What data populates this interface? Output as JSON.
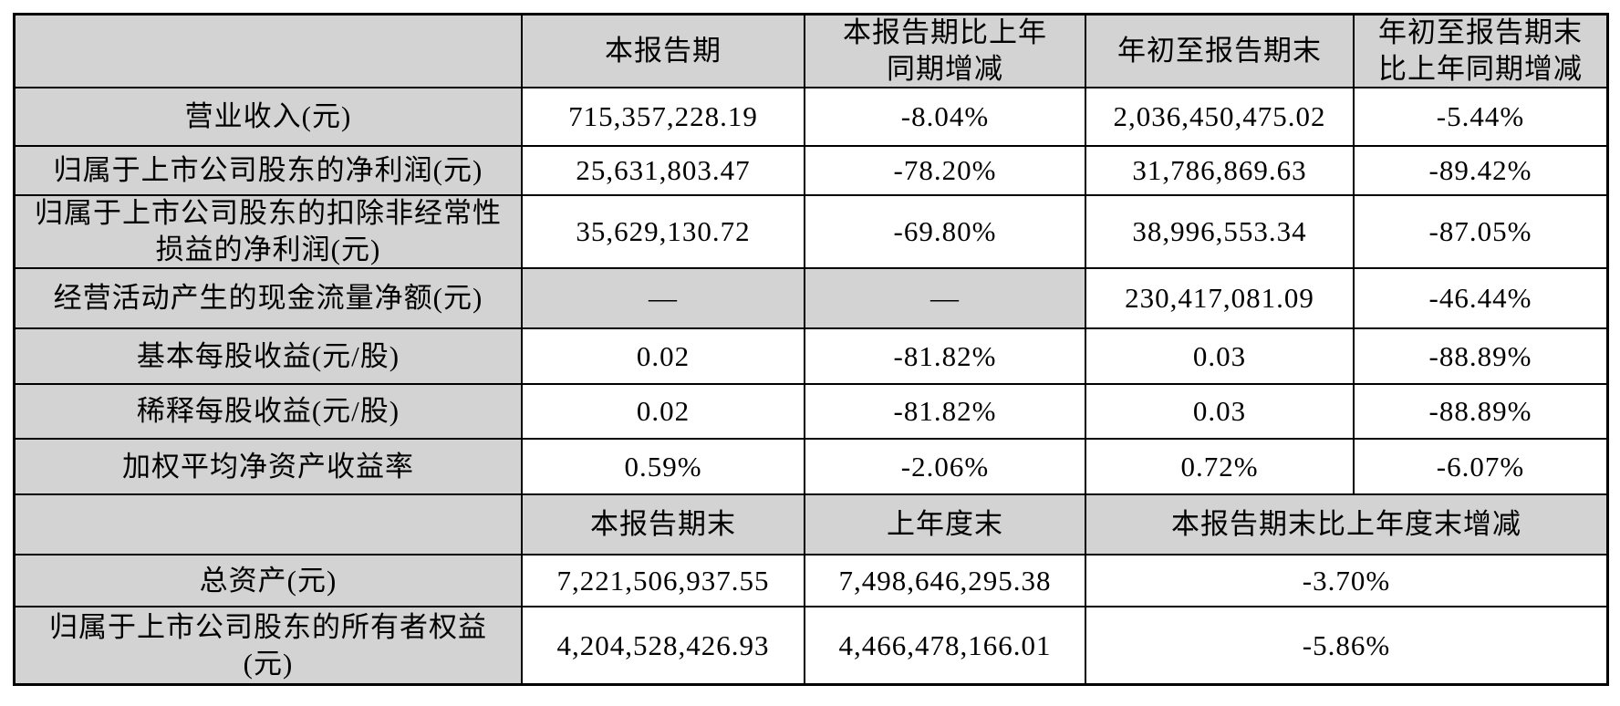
{
  "colors": {
    "shaded_cell": "#d3d3d3",
    "value_cell": "#ffffff",
    "border": "#000000",
    "text": "#000000"
  },
  "table": {
    "header_period": {
      "corner": "",
      "current_period": "本报告期",
      "current_period_yoy": "本报告期比上年\n同期增减",
      "ytd": "年初至报告期末",
      "ytd_yoy": "年初至报告期末\n比上年同期增减"
    },
    "rows_period": [
      {
        "label": "营业收入(元)",
        "current": "715,357,228.19",
        "yoy": "-8.04%",
        "ytd": "2,036,450,475.02",
        "ytd_yoy": "-5.44%"
      },
      {
        "label": "归属于上市公司股东的净利润(元)",
        "current": "25,631,803.47",
        "yoy": "-78.20%",
        "ytd": "31,786,869.63",
        "ytd_yoy": "-89.42%"
      },
      {
        "label": "归属于上市公司股东的扣除非经常性\n损益的净利润(元)",
        "current": "35,629,130.72",
        "yoy": "-69.80%",
        "ytd": "38,996,553.34",
        "ytd_yoy": "-87.05%"
      },
      {
        "label": "经营活动产生的现金流量净额(元)",
        "current": "—",
        "yoy": "—",
        "ytd": "230,417,081.09",
        "ytd_yoy": "-46.44%"
      },
      {
        "label": "基本每股收益(元/股)",
        "current": "0.02",
        "yoy": "-81.82%",
        "ytd": "0.03",
        "ytd_yoy": "-88.89%"
      },
      {
        "label": "稀释每股收益(元/股)",
        "current": "0.02",
        "yoy": "-81.82%",
        "ytd": "0.03",
        "ytd_yoy": "-88.89%"
      },
      {
        "label": "加权平均净资产收益率",
        "current": "0.59%",
        "yoy": "-2.06%",
        "ytd": "0.72%",
        "ytd_yoy": "-6.07%"
      }
    ],
    "header_balance": {
      "corner": "",
      "period_end": "本报告期末",
      "prior_year_end": "上年度末",
      "change": "本报告期末比上年度末增减"
    },
    "rows_balance": [
      {
        "label": "总资产(元)",
        "period_end": "7,221,506,937.55",
        "prior_year_end": "7,498,646,295.38",
        "change": "-3.70%"
      },
      {
        "label": "归属于上市公司股东的所有者权益\n(元)",
        "period_end": "4,204,528,426.93",
        "prior_year_end": "4,466,478,166.01",
        "change": "-5.86%"
      }
    ]
  }
}
